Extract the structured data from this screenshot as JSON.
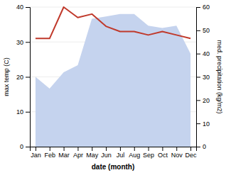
{
  "chart_data": {
    "type": "line",
    "categories": [
      "Jan",
      "Feb",
      "Mar",
      "Apr",
      "May",
      "Jun",
      "Jul",
      "Aug",
      "Sep",
      "Oct",
      "Nov",
      "Dec"
    ],
    "xlabel": "date (month)",
    "ylabel": "max temp (C)",
    "y2label": "med. precipitation (kg/m2)",
    "series": [
      {
        "type": "area",
        "axis": "y2",
        "color": "#c5d3ee",
        "values": [
          30,
          25,
          32,
          35,
          55,
          56,
          57,
          57,
          52,
          51,
          52,
          40
        ]
      },
      {
        "type": "line",
        "color": "#c0392b",
        "values": [
          31,
          31,
          40,
          37,
          38,
          34.5,
          33,
          33,
          32,
          33,
          32,
          31
        ]
      }
    ],
    "ylim": [
      0,
      40
    ],
    "yticks": [
      0,
      10,
      20,
      30,
      40
    ],
    "y2lim": [
      0,
      60
    ],
    "y2ticks": [
      0,
      10,
      20,
      30,
      40,
      50,
      60
    ],
    "grid": true
  }
}
